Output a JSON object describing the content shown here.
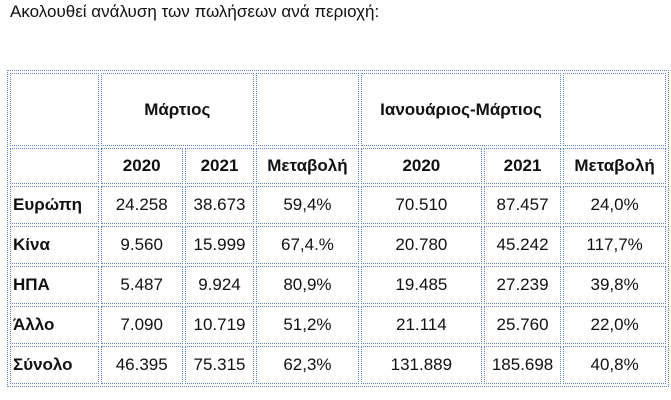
{
  "intro": "Ακολουθεί ανάλυση των πωλήσεων ανά περιοχή:",
  "table": {
    "group_headers": {
      "march": "Μάρτιος",
      "jan_march": "Ιανουάριος-Μάρτιος"
    },
    "columns": [
      "2020",
      "2021",
      "Μεταβολή",
      "2020",
      "2021",
      "Μεταβολή"
    ],
    "rows": [
      [
        "Ευρώπη",
        "24.258",
        "38.673",
        "59,4%",
        "70.510",
        "87.457",
        "24,0%"
      ],
      [
        "Κίνα",
        "9.560",
        "15.999",
        "67,4.%",
        "20.780",
        "45.242",
        "117,7%"
      ],
      [
        "ΗΠΑ",
        "5.487",
        "9.924",
        "80,9%",
        "19.485",
        "27.239",
        "39,8%"
      ],
      [
        "Άλλο",
        "7.090",
        "10.719",
        "51,2%",
        "21.114",
        "25.760",
        "22,0%"
      ],
      [
        "Σύνολο",
        "46.395",
        "75.315",
        "62,3%",
        "131.889",
        "185.698",
        "40,8%"
      ]
    ]
  }
}
